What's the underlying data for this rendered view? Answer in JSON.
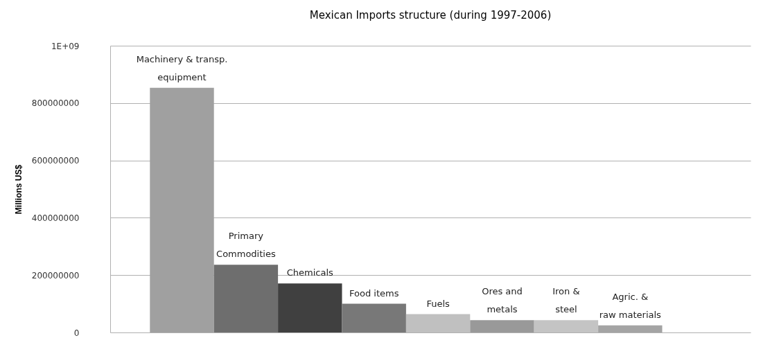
{
  "chart_data": {
    "type": "bar",
    "title": "Mexican Imports structure (during 1997-2006)",
    "ylabel": "Millions US$",
    "categories": [
      "Machinery & transp.\nequipment",
      "Primary\nCommodities",
      "Chemicals",
      "Food items",
      "Fuels",
      "Ores and\nmetals",
      "Iron &\nsteel",
      "Agric. &\nraw materials"
    ],
    "values": [
      853000000,
      236000000,
      171000000,
      100000000,
      64000000,
      43000000,
      43000000,
      25000000
    ],
    "colors": [
      "#a0a0a0",
      "#6e6e6e",
      "#404040",
      "#787878",
      "#c0c0c0",
      "#999999",
      "#c4c4c4",
      "#a4a4a4"
    ],
    "ylim": [
      0,
      1000000000
    ],
    "yticks": [
      0,
      200000000,
      400000000,
      600000000,
      800000000,
      {
        "value": 1000000000,
        "label": "1E+09"
      }
    ],
    "grid": "y"
  }
}
